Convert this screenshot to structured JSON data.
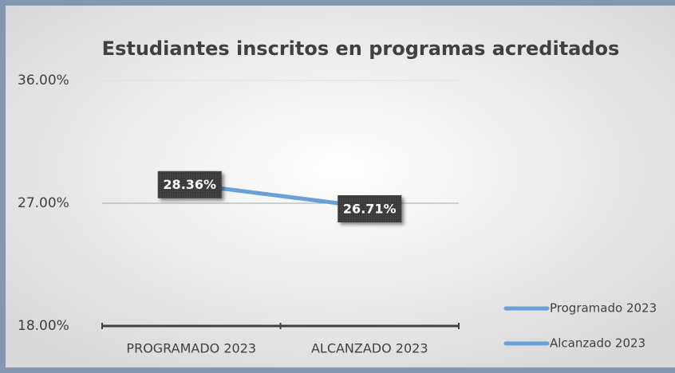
{
  "chart_data": {
    "type": "line",
    "title": "Estudiantes inscritos en programas acreditados",
    "categories": [
      "PROGRAMADO 2023",
      "ALCANZADO 2023"
    ],
    "series": [
      {
        "color": "#6a9fd8",
        "values": [
          28.36,
          26.71
        ],
        "value_labels": [
          "28.36%",
          "26.71%"
        ]
      }
    ],
    "legend": [
      "Programado 2023",
      "Alcanzado 2023"
    ],
    "ylim": [
      18,
      36
    ],
    "yticks": [
      {
        "value": 18,
        "label": "18.00%"
      },
      {
        "value": 27,
        "label": "27.00%"
      },
      {
        "value": 36,
        "label": "36.00%"
      }
    ],
    "grid": true
  }
}
